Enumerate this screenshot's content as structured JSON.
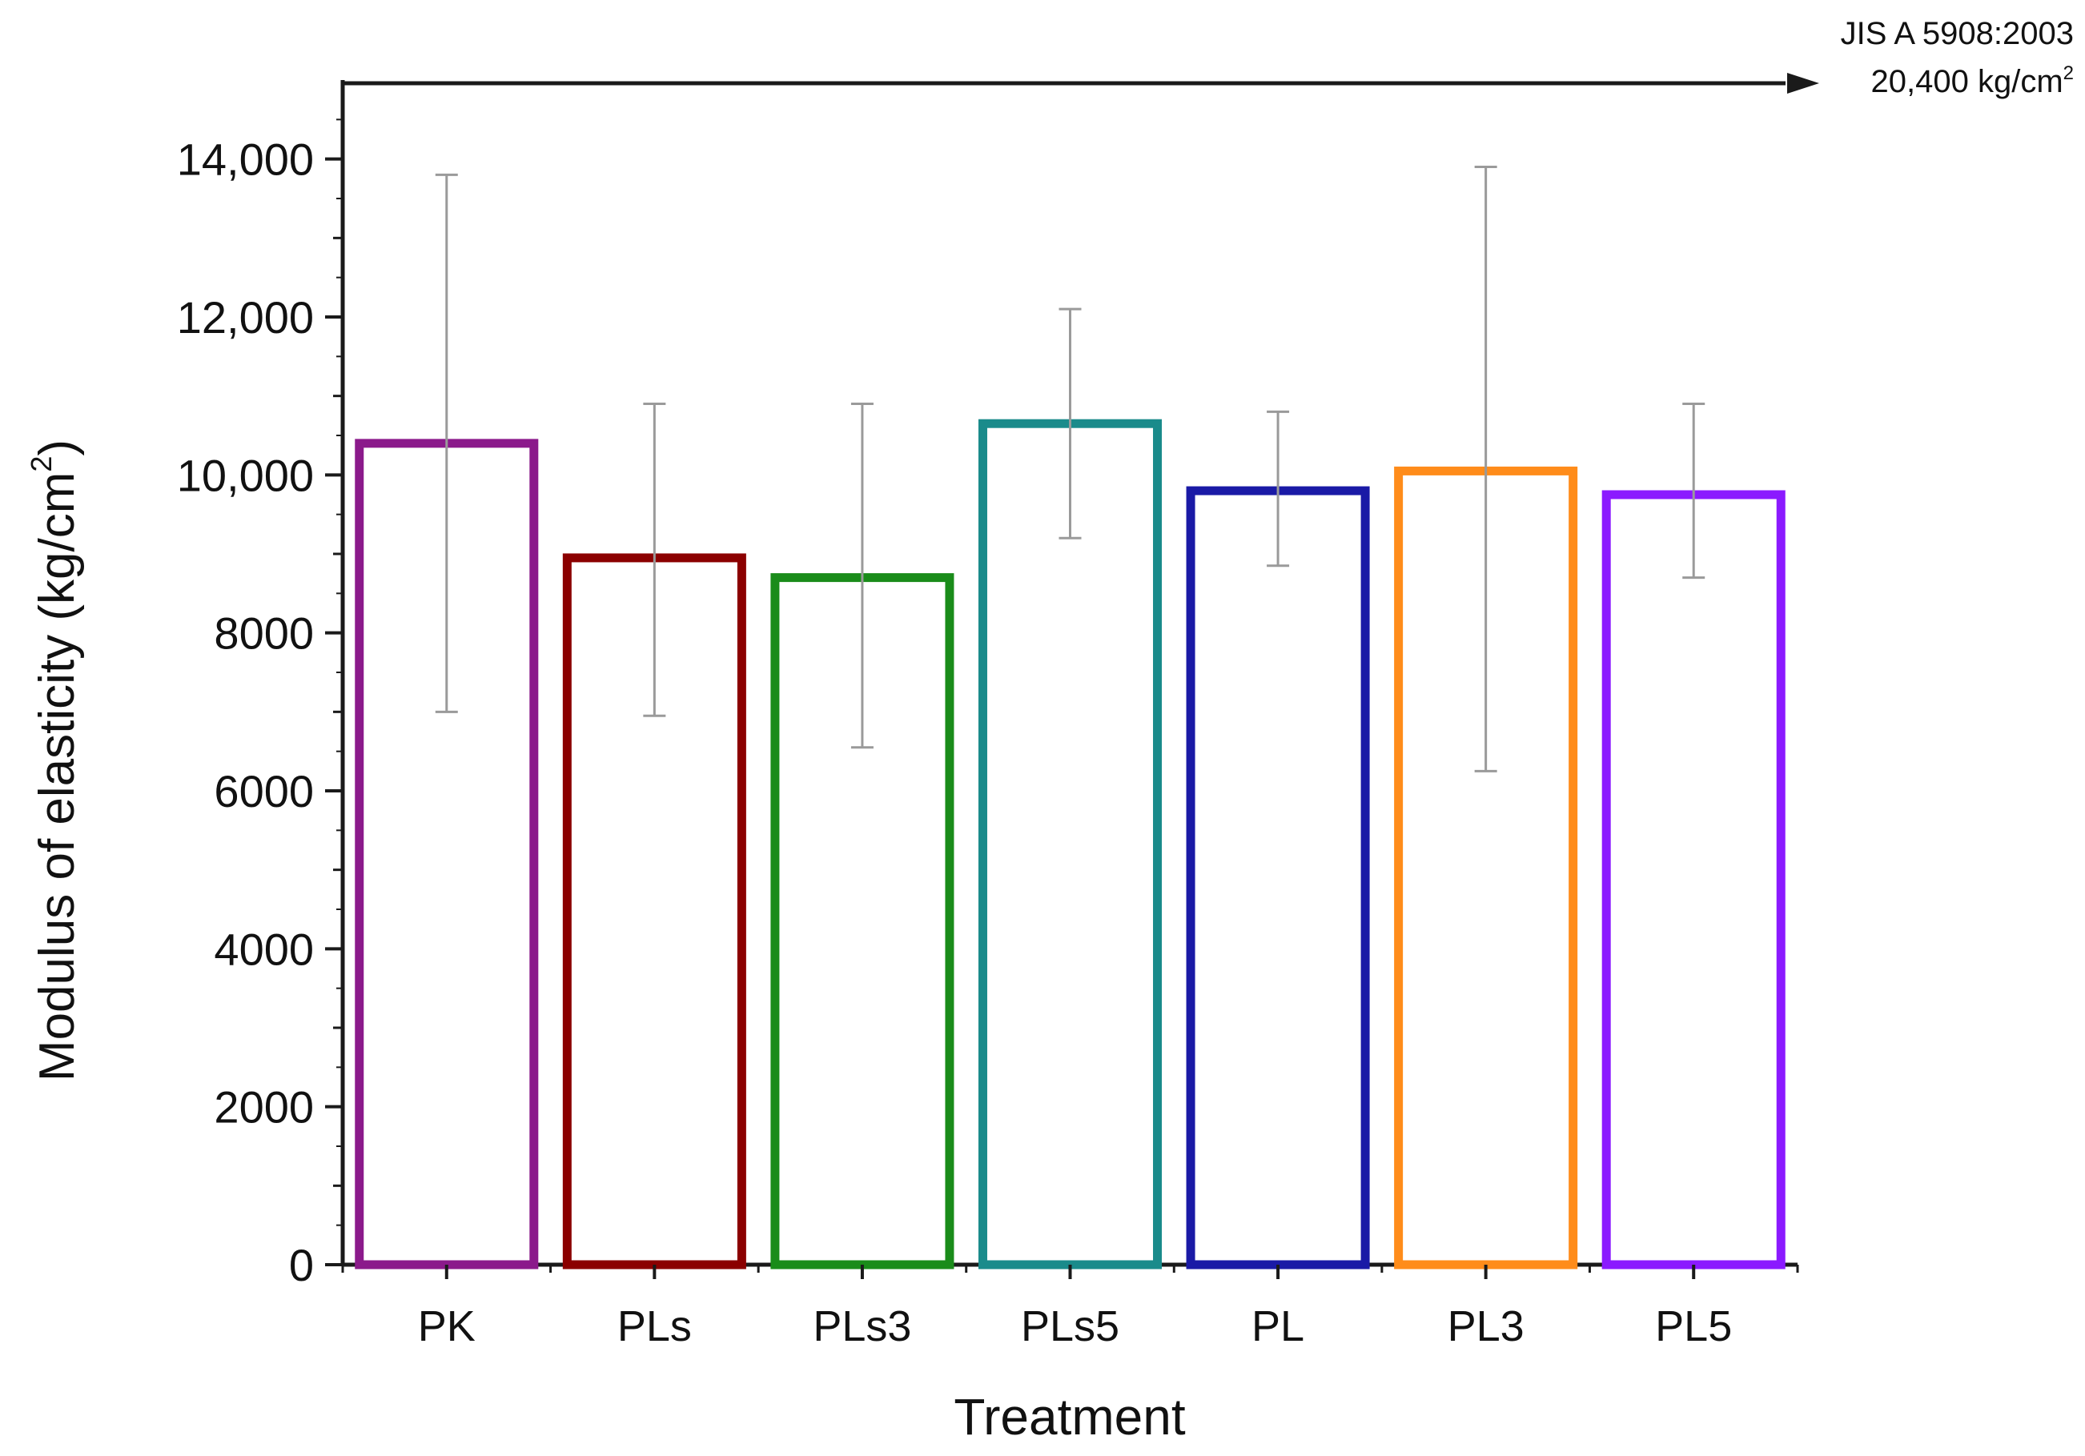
{
  "chart_data": {
    "type": "bar",
    "title": "",
    "xlabel": "Treatment",
    "ylabel": "Modulus of elasticity (kg/cm",
    "ylabel_sup": "2",
    "ylabel_close": ")",
    "ylim": [
      0,
      15000
    ],
    "yticks": [
      {
        "value": 0,
        "label": "0"
      },
      {
        "value": 2000,
        "label": "2000"
      },
      {
        "value": 4000,
        "label": "4000"
      },
      {
        "value": 6000,
        "label": "6000"
      },
      {
        "value": 8000,
        "label": "8000"
      },
      {
        "value": 10000,
        "label": "10,000"
      },
      {
        "value": 12000,
        "label": "12,000"
      },
      {
        "value": 14000,
        "label": "14,000"
      }
    ],
    "categories": [
      "PK",
      "PLs",
      "PLs3",
      "PLs5",
      "PL",
      "PL3",
      "PL5"
    ],
    "values": [
      10400,
      8950,
      8700,
      10650,
      9800,
      10050,
      9750
    ],
    "error_low": [
      7000,
      6950,
      6550,
      9200,
      8850,
      6250,
      8700
    ],
    "error_high": [
      13800,
      10900,
      10900,
      12100,
      10800,
      13900,
      10900
    ],
    "bar_colors": [
      "#8b1a8b",
      "#8b0000",
      "#1a8c1a",
      "#1a8b8b",
      "#1a1aa6",
      "#ff8c1a",
      "#8b1aff"
    ],
    "error_color": "#9a9a9a",
    "reference": {
      "label_line1": "JIS A 5908:2003",
      "label_line2": "20,400 kg/cm",
      "label_sup": "2",
      "value": 20400
    }
  }
}
